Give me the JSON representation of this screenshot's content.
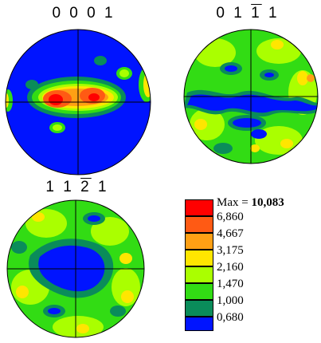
{
  "pole_figures": [
    {
      "title_parts": [
        "0 0 0 1"
      ],
      "overline_index": null
    },
    {
      "title_parts": [
        "0 1 ",
        "1",
        " 1"
      ],
      "overline_index": 1
    },
    {
      "title_parts": [
        "1 1 ",
        "2",
        " 1"
      ],
      "overline_index": 1
    }
  ],
  "legend": {
    "max_label": "Max = ",
    "max_value": "10,083",
    "levels": [
      "6,860",
      "4,667",
      "3,175",
      "2,160",
      "1,470",
      "1,000",
      "0,680"
    ],
    "colors": [
      "#ff0000",
      "#ff5a14",
      "#ffa014",
      "#ffe600",
      "#aaff00",
      "#32dc14",
      "#0a8c5a",
      "#0014ff"
    ]
  }
}
